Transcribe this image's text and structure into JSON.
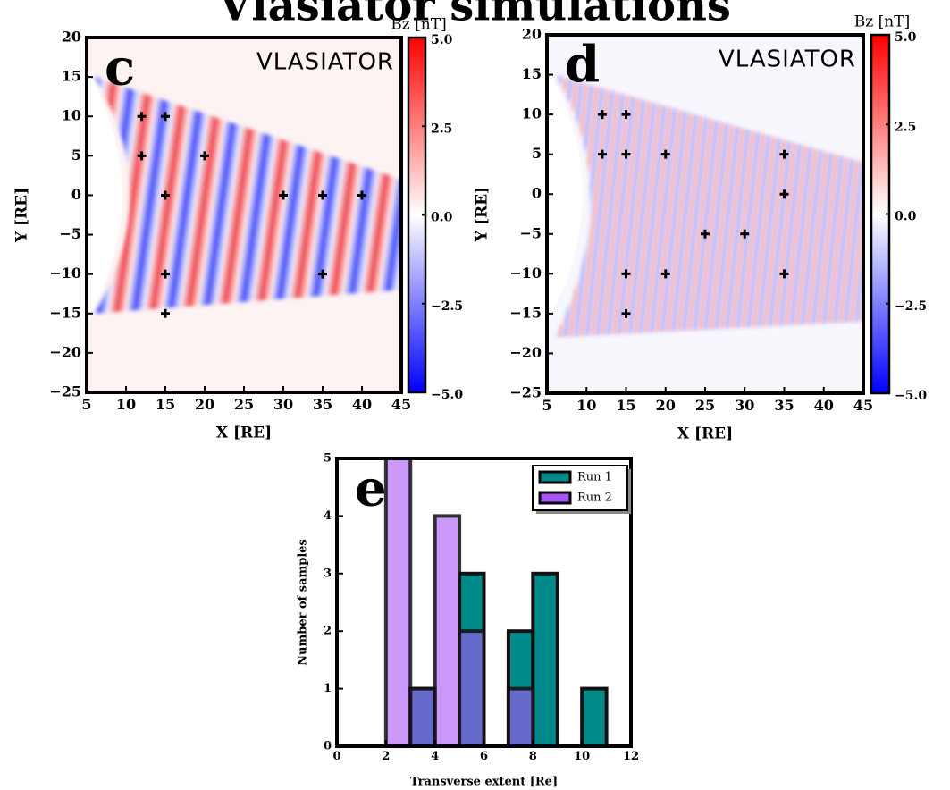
{
  "figure_title": "Vlasiator simulations",
  "chart_data": [
    {
      "type": "scatter",
      "panel_label": "c",
      "logo": "VLASIATOR",
      "xlabel": "X [RE]",
      "ylabel": "Y [RE]",
      "xlim": [
        5,
        45
      ],
      "ylim": [
        -25,
        20
      ],
      "xticks": [
        5,
        10,
        15,
        20,
        25,
        30,
        35,
        40,
        45
      ],
      "yticks": [
        20,
        15,
        10,
        5,
        0,
        {
          "value": -5,
          "label": "−5"
        },
        {
          "value": -10,
          "label": "−10"
        },
        {
          "value": -15,
          "label": "−15"
        },
        {
          "value": -20,
          "label": "−20"
        },
        {
          "value": -25,
          "label": "−25"
        }
      ],
      "x": [
        12,
        15,
        12,
        20,
        15,
        30,
        35,
        40,
        15,
        35,
        15
      ],
      "y": [
        10,
        10,
        5,
        5,
        0,
        0,
        0,
        0,
        -10,
        -10,
        -15
      ],
      "color": "#000000",
      "colorbar": {
        "label": "Bz [nT]",
        "lim": [
          -5,
          5
        ],
        "ticks": [
          {
            "value": 5,
            "label": "5.0"
          },
          {
            "value": 2.5,
            "label": "2.5"
          },
          {
            "value": 0,
            "label": "0.0"
          },
          {
            "value": -2.5,
            "label": "−2.5"
          },
          {
            "value": -5,
            "label": "−5.0"
          }
        ]
      }
    },
    {
      "type": "scatter",
      "panel_label": "d",
      "logo": "VLASIATOR",
      "xlabel": "X [RE]",
      "ylabel": "Y [RE]",
      "xlim": [
        5,
        45
      ],
      "ylim": [
        -25,
        20
      ],
      "xticks": [
        5,
        10,
        15,
        20,
        25,
        30,
        35,
        40,
        45
      ],
      "yticks": [
        20,
        15,
        10,
        5,
        0,
        {
          "value": -5,
          "label": "−5"
        },
        {
          "value": -10,
          "label": "−10"
        },
        {
          "value": -15,
          "label": "−15"
        },
        {
          "value": -20,
          "label": "−20"
        },
        {
          "value": -25,
          "label": "−25"
        }
      ],
      "x": [
        12,
        15,
        12,
        15,
        20,
        35,
        35,
        25,
        30,
        15,
        20,
        35,
        15
      ],
      "y": [
        10,
        10,
        5,
        5,
        5,
        5,
        0,
        -5,
        -5,
        -10,
        -10,
        -10,
        -15
      ],
      "color": "#000000",
      "colorbar": {
        "label": "Bz [nT]",
        "lim": [
          -5,
          5
        ],
        "ticks": [
          {
            "value": 5,
            "label": "5.0"
          },
          {
            "value": 2.5,
            "label": "2.5"
          },
          {
            "value": 0,
            "label": "0.0"
          },
          {
            "value": -2.5,
            "label": "−2.5"
          },
          {
            "value": -5,
            "label": "−5.0"
          }
        ]
      }
    },
    {
      "type": "histogram",
      "panel_label": "e",
      "xlabel": "Transverse extent [Re]",
      "ylabel": "Number of samples",
      "bins": [
        0,
        1,
        2,
        3,
        4,
        5,
        6,
        7,
        8,
        9,
        10,
        11,
        12
      ],
      "series": [
        {
          "name": "Run 1",
          "color": "#008b8b",
          "values": [
            0,
            0,
            0,
            1,
            0,
            3,
            0,
            2,
            3,
            0,
            1,
            0
          ]
        },
        {
          "name": "Run 2",
          "color": "#a855f7",
          "values": [
            0,
            0,
            5,
            1,
            4,
            2,
            0,
            1,
            0,
            0,
            0,
            0
          ]
        }
      ],
      "xlim": [
        0,
        12
      ],
      "ylim": [
        0,
        5
      ],
      "xticks": [
        0,
        2,
        4,
        6,
        8,
        10,
        12
      ],
      "yticks": [
        0,
        1,
        2,
        3,
        4,
        5
      ],
      "legend": "upper right"
    }
  ]
}
